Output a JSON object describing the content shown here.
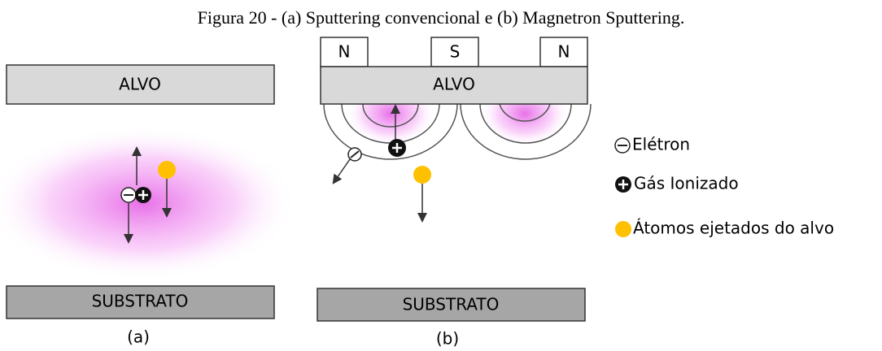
{
  "title": "Figura 20 - (a) Sputtering convencional e (b) Magnetron Sputtering.",
  "panel_a": {
    "target": "ALVO",
    "substrate": "SUBSTRATO",
    "label": "(a)"
  },
  "panel_b": {
    "magnets": [
      "N",
      "S",
      "N"
    ],
    "target": "ALVO",
    "substrate": "SUBSTRATO",
    "label": "(b)"
  },
  "legend": [
    "Elétron",
    "Gás Ionizado",
    "Átomos ejetados do alvo"
  ]
}
